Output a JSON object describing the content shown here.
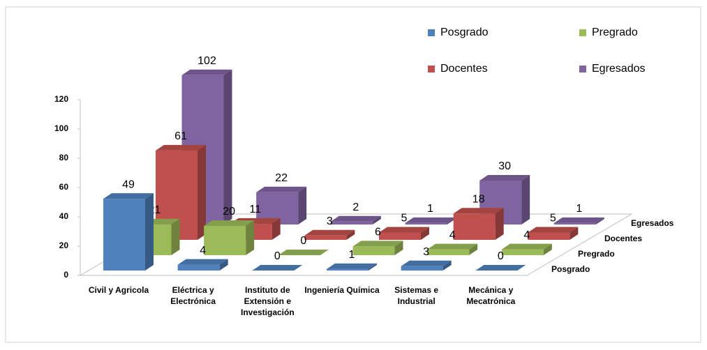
{
  "chart_data": {
    "type": "bar3d",
    "categories": [
      "Civil y Agricola",
      "Eléctrica y Electrónica",
      "Instituto de Extensión e Investigación",
      "Ingeniería Química",
      "Sistemas e Industrial",
      "Mecánica y Mecatrónica"
    ],
    "series": [
      {
        "name": "Posgrado",
        "color": "#4f81bd",
        "values": [
          49,
          4,
          0,
          1,
          3,
          0
        ]
      },
      {
        "name": "Pregrado",
        "color": "#9bbb59",
        "values": [
          21,
          20,
          0,
          6,
          4,
          4
        ]
      },
      {
        "name": "Docentes",
        "color": "#c0504d",
        "values": [
          61,
          11,
          3,
          5,
          18,
          5
        ]
      },
      {
        "name": "Egresados",
        "color": "#8064a2",
        "values": [
          102,
          22,
          2,
          1,
          30,
          1
        ]
      }
    ],
    "ylim": [
      0,
      120
    ],
    "yticks": [
      0,
      20,
      40,
      60,
      80,
      100,
      120
    ],
    "legend": "top-right"
  }
}
